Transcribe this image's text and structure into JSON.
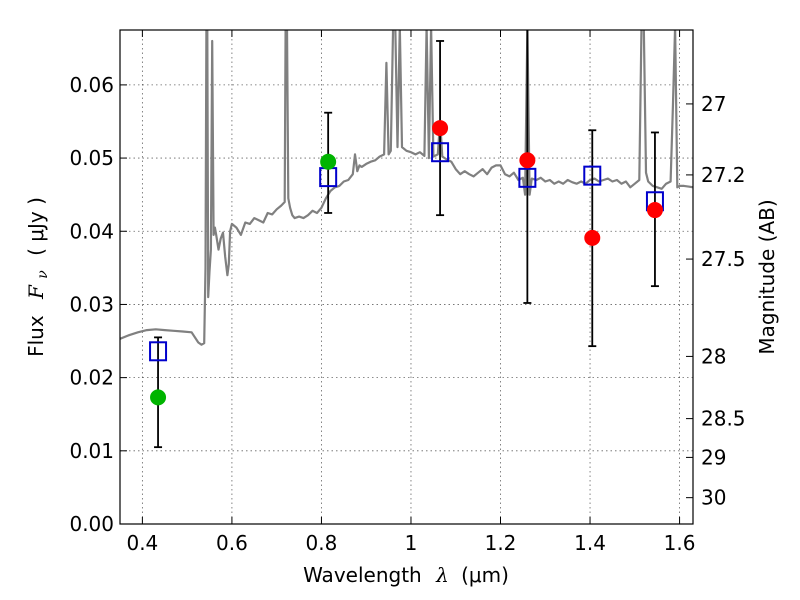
{
  "chart_data": {
    "type": "scatter",
    "xlabel_prefix": "Wavelength",
    "xlabel_symbol": "λ",
    "xlabel_unit": "(μm)",
    "ylabel_prefix": "Flux",
    "ylabel_symbol": "F",
    "ylabel_subscript": "ν",
    "ylabel_unit": "( μJy )",
    "y2label": "Magnitude (AB)",
    "xlim": [
      0.35,
      1.63
    ],
    "ylim": [
      0.0,
      0.0675
    ],
    "xticks": [
      0.4,
      0.6,
      0.8,
      1.0,
      1.2,
      1.4,
      1.6
    ],
    "xtick_labels": [
      "0.4",
      "0.6",
      "0.8",
      "1",
      "1.2",
      "1.4",
      "1.6"
    ],
    "yticks": [
      0.0,
      0.01,
      0.02,
      0.03,
      0.04,
      0.05,
      0.06
    ],
    "ytick_labels": [
      "0.00",
      "0.01",
      "0.02",
      "0.03",
      "0.04",
      "0.05",
      "0.06"
    ],
    "y2ticks": [
      {
        "label": "27",
        "flux": 0.0574
      },
      {
        "label": "27.2",
        "flux": 0.0477
      },
      {
        "label": "27.5",
        "flux": 0.0362
      },
      {
        "label": "28",
        "flux": 0.0229
      },
      {
        "label": "28.5",
        "flux": 0.0144
      },
      {
        "label": "29",
        "flux": 0.0091
      },
      {
        "label": "30",
        "flux": 0.0036
      }
    ],
    "grid": true,
    "colors": {
      "spectrum": "#808080",
      "model": "#0000cc",
      "detection": "#ff0000",
      "nondetection": "#00b400",
      "errorbar": "#000000"
    },
    "spectrum": {
      "x": [
        0.35,
        0.37,
        0.39,
        0.41,
        0.43,
        0.45,
        0.47,
        0.49,
        0.51,
        0.525,
        0.532,
        0.538,
        0.541,
        0.543,
        0.545,
        0.547,
        0.55,
        0.553,
        0.556,
        0.559,
        0.562,
        0.565,
        0.57,
        0.575,
        0.58,
        0.585,
        0.59,
        0.593,
        0.596,
        0.6,
        0.61,
        0.62,
        0.63,
        0.64,
        0.65,
        0.66,
        0.67,
        0.68,
        0.69,
        0.7,
        0.71,
        0.718,
        0.72,
        0.723,
        0.726,
        0.73,
        0.735,
        0.74,
        0.75,
        0.76,
        0.77,
        0.78,
        0.79,
        0.8,
        0.81,
        0.82,
        0.83,
        0.84,
        0.85,
        0.86,
        0.87,
        0.875,
        0.88,
        0.885,
        0.89,
        0.9,
        0.91,
        0.92,
        0.93,
        0.94,
        0.945,
        0.95,
        0.955,
        0.96,
        0.965,
        0.97,
        0.975,
        0.98,
        0.99,
        1.0,
        1.01,
        1.02,
        1.03,
        1.035,
        1.04,
        1.045,
        1.05,
        1.06,
        1.065,
        1.07,
        1.08,
        1.09,
        1.1,
        1.11,
        1.12,
        1.13,
        1.14,
        1.15,
        1.16,
        1.17,
        1.18,
        1.19,
        1.2,
        1.21,
        1.22,
        1.23,
        1.24,
        1.25,
        1.255,
        1.26,
        1.265,
        1.27,
        1.28,
        1.29,
        1.3,
        1.31,
        1.32,
        1.33,
        1.34,
        1.35,
        1.36,
        1.37,
        1.38,
        1.39,
        1.4,
        1.41,
        1.42,
        1.43,
        1.44,
        1.45,
        1.46,
        1.47,
        1.48,
        1.49,
        1.5,
        1.51,
        1.515,
        1.52,
        1.525,
        1.53,
        1.54,
        1.55,
        1.56,
        1.57,
        1.58,
        1.585,
        1.59,
        1.595,
        1.6,
        1.61,
        1.62,
        1.63
      ],
      "y": [
        0.0253,
        0.0258,
        0.0262,
        0.0265,
        0.0266,
        0.0265,
        0.0264,
        0.0263,
        0.0262,
        0.0248,
        0.0245,
        0.0247,
        0.035,
        0.068,
        0.068,
        0.031,
        0.0345,
        0.0375,
        0.066,
        0.0395,
        0.0405,
        0.0395,
        0.0375,
        0.039,
        0.0398,
        0.0365,
        0.034,
        0.0355,
        0.04,
        0.041,
        0.0405,
        0.0395,
        0.0412,
        0.041,
        0.0418,
        0.0415,
        0.0412,
        0.0425,
        0.0423,
        0.043,
        0.0435,
        0.044,
        0.068,
        0.068,
        0.0445,
        0.0432,
        0.0422,
        0.0418,
        0.042,
        0.0418,
        0.0422,
        0.0428,
        0.0425,
        0.0432,
        0.0445,
        0.0455,
        0.046,
        0.0462,
        0.0468,
        0.047,
        0.0478,
        0.0505,
        0.0482,
        0.049,
        0.0488,
        0.0492,
        0.0495,
        0.0497,
        0.0502,
        0.0505,
        0.063,
        0.0505,
        0.051,
        0.068,
        0.068,
        0.0515,
        0.068,
        0.0515,
        0.051,
        0.0508,
        0.0505,
        0.0508,
        0.0503,
        0.068,
        0.05,
        0.068,
        0.0502,
        0.0505,
        0.055,
        0.0502,
        0.0498,
        0.0495,
        0.0485,
        0.0478,
        0.0482,
        0.0478,
        0.0475,
        0.048,
        0.0485,
        0.0478,
        0.0487,
        0.049,
        0.049,
        0.0478,
        0.0475,
        0.048,
        0.047,
        0.0473,
        0.045,
        0.068,
        0.045,
        0.0472,
        0.047,
        0.0473,
        0.0468,
        0.047,
        0.0465,
        0.0468,
        0.0465,
        0.047,
        0.0467,
        0.0465,
        0.0468,
        0.0465,
        0.047,
        0.0472,
        0.0468,
        0.047,
        0.0472,
        0.0468,
        0.047,
        0.0465,
        0.0468,
        0.046,
        0.0465,
        0.047,
        0.068,
        0.068,
        0.048,
        0.0468,
        0.0462,
        0.046,
        0.0458,
        0.0465,
        0.0468,
        0.057,
        0.068,
        0.046,
        0.0462,
        0.0462,
        0.0461,
        0.046
      ]
    },
    "points": [
      {
        "x": 0.435,
        "model": 0.0236,
        "observed": 0.0173,
        "kind": "nondetection",
        "err_low": 0.0105,
        "err_high": 0.0255
      },
      {
        "x": 0.815,
        "model": 0.0474,
        "observed": 0.0495,
        "kind": "nondetection",
        "err_low": 0.0425,
        "err_high": 0.0562
      },
      {
        "x": 1.065,
        "model": 0.0508,
        "observed": 0.0541,
        "kind": "detection",
        "err_low": 0.0422,
        "err_high": 0.066
      },
      {
        "x": 1.26,
        "model": 0.0473,
        "observed": 0.0497,
        "kind": "detection",
        "err_low": 0.0302,
        "err_high": 0.068
      },
      {
        "x": 1.405,
        "model": 0.0476,
        "observed": 0.0391,
        "kind": "detection",
        "err_low": 0.0243,
        "err_high": 0.0538
      },
      {
        "x": 1.545,
        "model": 0.0441,
        "observed": 0.0429,
        "kind": "detection",
        "err_low": 0.0325,
        "err_high": 0.0535
      }
    ]
  }
}
